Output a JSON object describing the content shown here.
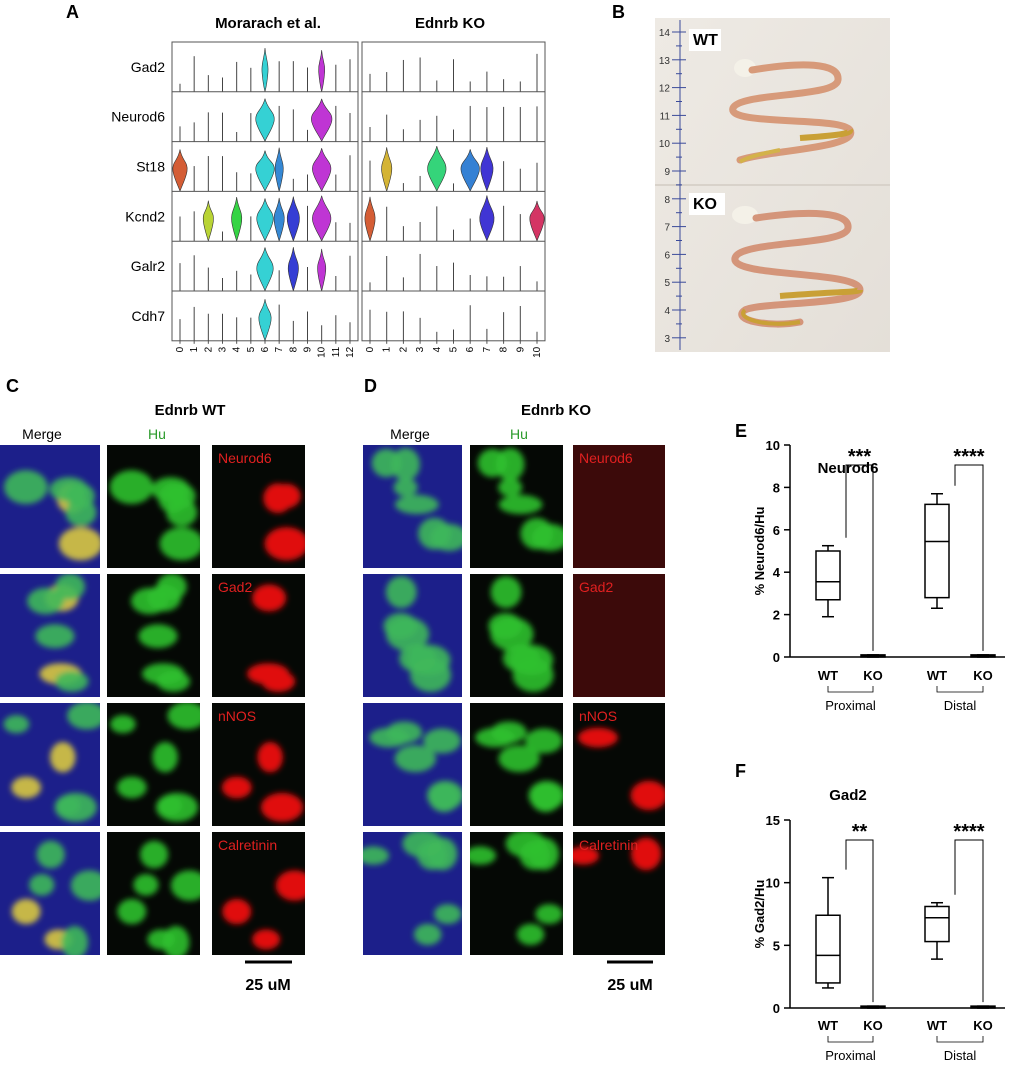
{
  "panel_a": {
    "label": "A",
    "titles": [
      "Morarach et al.",
      "Ednrb KO"
    ],
    "genes": [
      "Gad2",
      "Neurod6",
      "St18",
      "Kcnd2",
      "Galr2",
      "Cdh7"
    ],
    "left_clusters": [
      "0",
      "1",
      "2",
      "3",
      "4",
      "5",
      "6",
      "7",
      "8",
      "9",
      "10",
      "11",
      "12"
    ],
    "right_clusters": [
      "0",
      "1",
      "2",
      "3",
      "4",
      "5",
      "6",
      "7",
      "8",
      "9",
      "10"
    ]
  },
  "panel_b": {
    "label": "B",
    "ruler": [
      "14",
      "13",
      "12",
      "11",
      "10",
      "9",
      "8",
      "7",
      "6",
      "5",
      "4",
      "3"
    ],
    "samples": [
      "WT",
      "KO"
    ]
  },
  "panel_c": {
    "label": "C",
    "title": "Ednrb WT",
    "columns": [
      "Merge",
      "Hu"
    ],
    "markers": [
      "Neurod6",
      "Gad2",
      "nNOS",
      "Calretinin"
    ],
    "scale": "25 uM"
  },
  "panel_d": {
    "label": "D",
    "title": "Ednrb KO",
    "columns": [
      "Merge",
      "Hu"
    ],
    "markers": [
      "Neurod6",
      "Gad2",
      "nNOS",
      "Calretinin"
    ],
    "scale": "25 uM"
  },
  "chart_data": [
    {
      "type": "box",
      "label": "E",
      "title": "Neurod6",
      "ylabel": "% Neurod6/Hu",
      "ylim": [
        0,
        10
      ],
      "yticks": [
        0,
        2,
        4,
        6,
        8,
        10
      ],
      "categories": [
        "WT",
        "KO",
        "WT",
        "KO"
      ],
      "groups": [
        "Proximal",
        "Distal"
      ],
      "significance": [
        "***",
        "****"
      ],
      "boxes": [
        {
          "min": 1.9,
          "q1": 2.7,
          "median": 3.55,
          "q3": 5.0,
          "max": 5.25
        },
        {
          "min": 0,
          "q1": 0,
          "median": 0.05,
          "q3": 0.1,
          "max": 0.1
        },
        {
          "min": 2.3,
          "q1": 2.8,
          "median": 5.45,
          "q3": 7.2,
          "max": 7.7
        },
        {
          "min": 0,
          "q1": 0,
          "median": 0.05,
          "q3": 0.1,
          "max": 0.1
        }
      ]
    },
    {
      "type": "box",
      "label": "F",
      "title": "Gad2",
      "ylabel": "% Gad2/Hu",
      "ylim": [
        0,
        15
      ],
      "yticks": [
        0,
        5,
        10,
        15
      ],
      "categories": [
        "WT",
        "KO",
        "WT",
        "KO"
      ],
      "groups": [
        "Proximal",
        "Distal"
      ],
      "significance": [
        "**",
        "****"
      ],
      "boxes": [
        {
          "min": 1.6,
          "q1": 2.0,
          "median": 4.2,
          "q3": 7.4,
          "max": 10.4
        },
        {
          "min": 0,
          "q1": 0,
          "median": 0.1,
          "q3": 0.15,
          "max": 0.15
        },
        {
          "min": 3.9,
          "q1": 5.3,
          "median": 7.2,
          "q3": 8.1,
          "max": 8.4
        },
        {
          "min": 0,
          "q1": 0,
          "median": 0.1,
          "q3": 0.15,
          "max": 0.15
        }
      ]
    }
  ]
}
